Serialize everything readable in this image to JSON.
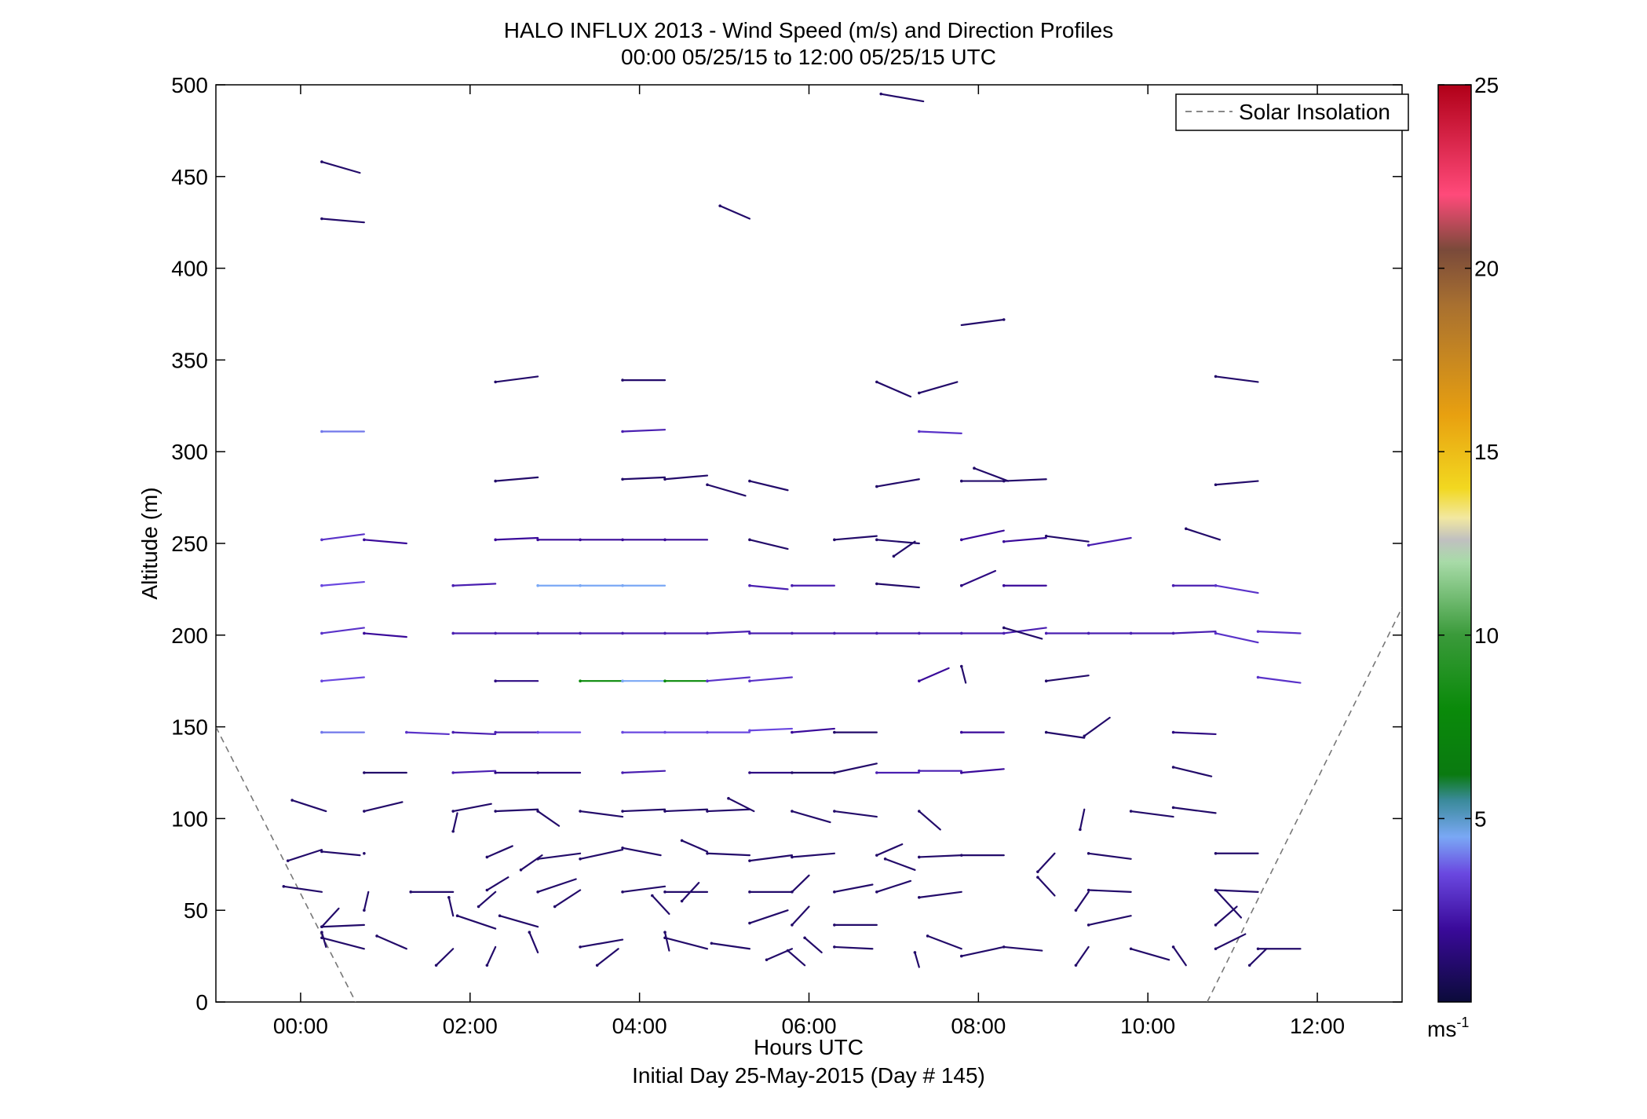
{
  "chart_data": {
    "type": "wind-barb-profile",
    "title_line1": "HALO INFLUX 2013 - Wind Speed (m/s) and Direction Profiles",
    "title_line2": "00:00 05/25/15 to 12:00 05/25/15  UTC",
    "xlabel": "Hours UTC",
    "xlabel_sub": "Initial Day 25-May-2015 (Day # 145)",
    "ylabel": "Altitude (m)",
    "xlim_hours": [
      -1,
      13
    ],
    "ylim": [
      0,
      500
    ],
    "x_ticks": [
      {
        "h": 0,
        "label": "00:00"
      },
      {
        "h": 2,
        "label": "02:00"
      },
      {
        "h": 4,
        "label": "04:00"
      },
      {
        "h": 6,
        "label": "06:00"
      },
      {
        "h": 8,
        "label": "08:00"
      },
      {
        "h": 10,
        "label": "10:00"
      },
      {
        "h": 12,
        "label": "12:00"
      }
    ],
    "y_ticks": [
      {
        "v": 0,
        "label": "0"
      },
      {
        "v": 50,
        "label": "50"
      },
      {
        "v": 100,
        "label": "100"
      },
      {
        "v": 150,
        "label": "150"
      },
      {
        "v": 200,
        "label": "200"
      },
      {
        "v": 250,
        "label": "250"
      },
      {
        "v": 300,
        "label": "300"
      },
      {
        "v": 350,
        "label": "350"
      },
      {
        "v": 400,
        "label": "400"
      },
      {
        "v": 450,
        "label": "450"
      },
      {
        "v": 500,
        "label": "500"
      }
    ],
    "legend": {
      "entry": "Solar Insolation",
      "placement": "top-right",
      "style": "dashed gray"
    },
    "solar_insolation": {
      "left_segment": [
        [
          -1,
          150
        ],
        [
          0.65,
          0
        ]
      ],
      "right_segment": [
        [
          10.7,
          0
        ],
        [
          13,
          215
        ]
      ]
    },
    "colorbar": {
      "min": 0,
      "max": 25,
      "unit_label": "ms",
      "unit_exponent": "-1",
      "tick_labels": [
        {
          "v": 5,
          "label": "5"
        },
        {
          "v": 10,
          "label": "10"
        },
        {
          "v": 15,
          "label": "15"
        },
        {
          "v": 20,
          "label": "20"
        },
        {
          "v": 25,
          "label": "25"
        }
      ],
      "stops": [
        {
          "v": 0,
          "color": "#0b0b3a"
        },
        {
          "v": 2,
          "color": "#3a0a9a"
        },
        {
          "v": 3.5,
          "color": "#6a48e0"
        },
        {
          "v": 4.5,
          "color": "#7aa8f5"
        },
        {
          "v": 5.5,
          "color": "#3a8a9a"
        },
        {
          "v": 6.2,
          "color": "#0a7a10"
        },
        {
          "v": 8,
          "color": "#0a8a0a"
        },
        {
          "v": 10,
          "color": "#3a9a3a"
        },
        {
          "v": 12,
          "color": "#a8dba8"
        },
        {
          "v": 12.6,
          "color": "#c0c0c0"
        },
        {
          "v": 13.2,
          "color": "#f2e8a0"
        },
        {
          "v": 14,
          "color": "#f2d820"
        },
        {
          "v": 16,
          "color": "#e8a010"
        },
        {
          "v": 19,
          "color": "#a87030"
        },
        {
          "v": 20.5,
          "color": "#7a4a3a"
        },
        {
          "v": 22,
          "color": "#ff4a7a"
        },
        {
          "v": 25,
          "color": "#b00018"
        }
      ]
    },
    "vector_note": "each vector: start time (h), altitude (m), dx (h), dz (m), speed (m/s)",
    "vectors": [
      [
        0.25,
        458,
        0.45,
        -6,
        1
      ],
      [
        0.25,
        427,
        0.5,
        -2,
        1
      ],
      [
        0.25,
        311,
        0.5,
        0,
        4
      ],
      [
        0.25,
        252,
        0.5,
        3,
        3
      ],
      [
        0.25,
        227,
        0.5,
        2,
        3.5
      ],
      [
        0.25,
        201,
        0.5,
        3,
        3
      ],
      [
        0.25,
        175,
        0.5,
        2,
        3.5
      ],
      [
        0.25,
        147,
        0.5,
        0,
        4
      ],
      [
        -0.1,
        110,
        0.4,
        -6,
        1
      ],
      [
        0.25,
        82,
        0.45,
        -2,
        1
      ],
      [
        -0.15,
        77,
        0.4,
        6,
        1
      ],
      [
        -0.2,
        63,
        0.45,
        -3,
        1
      ],
      [
        0.25,
        41,
        0.2,
        10,
        1
      ],
      [
        0.25,
        41,
        0.5,
        1,
        1
      ],
      [
        0.25,
        35,
        0.5,
        -6,
        1
      ],
      [
        0.25,
        38,
        0.05,
        -8,
        1
      ],
      [
        0.75,
        252,
        0.5,
        -2,
        2
      ],
      [
        0.75,
        201,
        0.5,
        -2,
        2
      ],
      [
        0.75,
        125,
        0.5,
        0,
        1
      ],
      [
        0.75,
        104,
        0.45,
        5,
        1
      ],
      [
        0.75,
        81,
        0,
        0,
        1
      ],
      [
        0.75,
        50,
        0.05,
        10,
        1
      ],
      [
        0.9,
        36,
        0.35,
        -7,
        1
      ],
      [
        1.25,
        147,
        0.5,
        -1,
        3
      ],
      [
        1.3,
        60,
        0.5,
        0,
        1
      ],
      [
        1.6,
        20,
        0.2,
        9,
        1
      ],
      [
        1.8,
        227,
        0.5,
        1,
        2.5
      ],
      [
        1.8,
        201,
        0.5,
        0,
        2.5
      ],
      [
        1.8,
        147,
        0.5,
        -1,
        2.5
      ],
      [
        1.8,
        125,
        0.5,
        1,
        2.5
      ],
      [
        1.8,
        104,
        0.45,
        4,
        1
      ],
      [
        1.8,
        93,
        0.05,
        10,
        1
      ],
      [
        1.75,
        57,
        0.05,
        -10,
        1
      ],
      [
        1.85,
        47,
        0.45,
        -7,
        1
      ],
      [
        2.1,
        52,
        0.2,
        8,
        1
      ],
      [
        2.2,
        20,
        0.1,
        10,
        1
      ],
      [
        2.3,
        338,
        0.5,
        3,
        1
      ],
      [
        2.3,
        284,
        0.5,
        2,
        1
      ],
      [
        2.3,
        252,
        0.5,
        1,
        2
      ],
      [
        2.3,
        201,
        0.5,
        0,
        2.5
      ],
      [
        2.3,
        175,
        0.5,
        0,
        1.5
      ],
      [
        2.3,
        147,
        0.5,
        0,
        2.5
      ],
      [
        2.3,
        125,
        0.5,
        0,
        1.5
      ],
      [
        2.3,
        104,
        0.5,
        1,
        1
      ],
      [
        2.2,
        79,
        0.3,
        6,
        1
      ],
      [
        2.2,
        61,
        0.25,
        7,
        1
      ],
      [
        2.35,
        47,
        0.45,
        -6,
        1
      ],
      [
        2.7,
        38,
        0.1,
        -11,
        1
      ],
      [
        2.6,
        72,
        0.25,
        8,
        1
      ],
      [
        2.8,
        252,
        0.5,
        0,
        2
      ],
      [
        2.8,
        227,
        0.5,
        0,
        4.5
      ],
      [
        2.8,
        201,
        0.5,
        0,
        2.5
      ],
      [
        2.8,
        147,
        0.5,
        0,
        3.5
      ],
      [
        2.8,
        125,
        0.5,
        0,
        1.5
      ],
      [
        2.8,
        104,
        0.25,
        -8,
        1
      ],
      [
        2.8,
        78,
        0.5,
        3,
        1
      ],
      [
        2.8,
        60,
        0.45,
        7,
        1
      ],
      [
        3.0,
        52,
        0.3,
        9,
        1
      ],
      [
        3.3,
        252,
        0.5,
        0,
        2
      ],
      [
        3.3,
        227,
        0.5,
        0,
        4.5
      ],
      [
        3.3,
        201,
        0.5,
        0,
        2.5
      ],
      [
        3.3,
        175,
        0.5,
        0,
        8
      ],
      [
        3.3,
        104,
        0.5,
        -3,
        1
      ],
      [
        3.3,
        78,
        0.5,
        5,
        1
      ],
      [
        3.3,
        30,
        0.5,
        4,
        1
      ],
      [
        3.5,
        20,
        0.25,
        9,
        1
      ],
      [
        3.8,
        339,
        0.5,
        0,
        1
      ],
      [
        3.8,
        311,
        0.5,
        1,
        2.5
      ],
      [
        3.8,
        285,
        0.5,
        1,
        1
      ],
      [
        3.8,
        252,
        0.5,
        0,
        2
      ],
      [
        3.8,
        227,
        0.5,
        0,
        4.5
      ],
      [
        3.8,
        201,
        0.5,
        0,
        2.5
      ],
      [
        3.8,
        175,
        0.5,
        0,
        4.5
      ],
      [
        3.8,
        147,
        0.5,
        0,
        3.5
      ],
      [
        3.8,
        125,
        0.5,
        1,
        2.5
      ],
      [
        3.8,
        104,
        0.5,
        1,
        1
      ],
      [
        3.8,
        84,
        0.45,
        -4,
        1
      ],
      [
        3.8,
        60,
        0.5,
        3,
        1
      ],
      [
        4.15,
        58,
        0.2,
        -10,
        1
      ],
      [
        4.3,
        38,
        0.05,
        -10,
        1
      ],
      [
        4.3,
        35,
        0.5,
        -6,
        1
      ],
      [
        4.3,
        285,
        0.5,
        2,
        1
      ],
      [
        4.3,
        252,
        0.5,
        0,
        2
      ],
      [
        4.3,
        201,
        0.5,
        0,
        2.5
      ],
      [
        4.3,
        175,
        0.5,
        0,
        8
      ],
      [
        4.3,
        147,
        0.5,
        0,
        3.5
      ],
      [
        4.3,
        104,
        0.5,
        1,
        1
      ],
      [
        4.3,
        60,
        0.5,
        0,
        1
      ],
      [
        4.5,
        55,
        0.2,
        10,
        1
      ],
      [
        4.5,
        88,
        0.3,
        -6,
        1
      ],
      [
        4.8,
        282,
        0.45,
        -6,
        1
      ],
      [
        4.8,
        201,
        0.5,
        1,
        2.5
      ],
      [
        4.8,
        175,
        0.5,
        2,
        3
      ],
      [
        4.8,
        147,
        0.5,
        0,
        3.5
      ],
      [
        4.8,
        104,
        0.5,
        1,
        1
      ],
      [
        4.8,
        81,
        0.5,
        -1,
        1
      ],
      [
        4.85,
        32,
        0.45,
        -3,
        1
      ],
      [
        4.95,
        434,
        0.35,
        -7,
        1
      ],
      [
        5.05,
        111,
        0.3,
        -7,
        1
      ],
      [
        5.3,
        284,
        0.45,
        -5,
        1
      ],
      [
        5.3,
        252,
        0.45,
        -5,
        1
      ],
      [
        5.3,
        227,
        0.45,
        -2,
        2.5
      ],
      [
        5.3,
        201,
        0.5,
        0,
        2.5
      ],
      [
        5.3,
        175,
        0.5,
        2,
        3
      ],
      [
        5.3,
        148,
        0.5,
        1,
        3.5
      ],
      [
        5.3,
        125,
        0.5,
        0,
        1.5
      ],
      [
        5.3,
        77,
        0.5,
        3,
        1
      ],
      [
        5.3,
        60,
        0.5,
        0,
        1
      ],
      [
        5.3,
        43,
        0.45,
        7,
        1
      ],
      [
        5.5,
        23,
        0.3,
        6,
        1
      ],
      [
        5.8,
        227,
        0.5,
        0,
        2.5
      ],
      [
        5.8,
        201,
        0.5,
        0,
        2.5
      ],
      [
        5.8,
        147,
        0.5,
        2,
        2
      ],
      [
        5.8,
        125,
        0.5,
        0,
        1
      ],
      [
        5.8,
        104,
        0.45,
        -6,
        1
      ],
      [
        5.8,
        79,
        0.5,
        2,
        1
      ],
      [
        5.8,
        60,
        0.2,
        9,
        1
      ],
      [
        5.8,
        42,
        0.2,
        10,
        1
      ],
      [
        5.75,
        28,
        0.2,
        -8,
        1
      ],
      [
        5.95,
        35,
        0.2,
        -8,
        1
      ],
      [
        6.3,
        252,
        0.5,
        2,
        1
      ],
      [
        6.3,
        201,
        0.5,
        0,
        2.5
      ],
      [
        6.3,
        147,
        0.5,
        0,
        1
      ],
      [
        6.3,
        125,
        0.5,
        5,
        1
      ],
      [
        6.3,
        104,
        0.5,
        -3,
        1
      ],
      [
        6.3,
        60,
        0.45,
        4,
        1
      ],
      [
        6.3,
        42,
        0.5,
        0,
        1
      ],
      [
        6.3,
        30,
        0.45,
        -1,
        1
      ],
      [
        6.8,
        338,
        0.4,
        -8,
        1
      ],
      [
        6.8,
        281,
        0.5,
        4,
        1
      ],
      [
        6.8,
        252,
        0.5,
        -2,
        1
      ],
      [
        6.8,
        228,
        0.5,
        -2,
        1
      ],
      [
        6.8,
        201,
        0.5,
        0,
        2.5
      ],
      [
        6.8,
        125,
        0.5,
        0,
        2.5
      ],
      [
        6.8,
        80,
        0.3,
        6,
        1
      ],
      [
        6.8,
        60,
        0.4,
        6,
        1
      ],
      [
        6.85,
        495,
        0.5,
        -4,
        1
      ],
      [
        6.9,
        78,
        0.35,
        -6,
        1
      ],
      [
        7.0,
        243,
        0.25,
        8,
        1
      ],
      [
        7.3,
        332,
        0.45,
        6,
        1
      ],
      [
        7.3,
        311,
        0.5,
        -1,
        3
      ],
      [
        7.3,
        201,
        0.5,
        0,
        2.5
      ],
      [
        7.3,
        175,
        0.35,
        7,
        2
      ],
      [
        7.3,
        126,
        0.5,
        0,
        2.5
      ],
      [
        7.3,
        104,
        0.25,
        -10,
        1
      ],
      [
        7.3,
        79,
        0.5,
        1,
        1
      ],
      [
        7.3,
        57,
        0.5,
        3,
        1
      ],
      [
        7.25,
        27,
        0.05,
        -8,
        1
      ],
      [
        7.4,
        36,
        0.4,
        -7,
        1
      ],
      [
        7.8,
        284,
        0.5,
        0,
        1
      ],
      [
        7.8,
        252,
        0.5,
        5,
        2
      ],
      [
        7.8,
        227,
        0.4,
        8,
        1.5
      ],
      [
        7.8,
        201,
        0.5,
        0,
        2.5
      ],
      [
        7.8,
        183,
        0.05,
        -9,
        1
      ],
      [
        7.8,
        147,
        0.5,
        0,
        2
      ],
      [
        7.8,
        125,
        0.5,
        2,
        2
      ],
      [
        7.8,
        80,
        0.5,
        0,
        1
      ],
      [
        7.8,
        25,
        0.5,
        5,
        1
      ],
      [
        7.95,
        291,
        0.4,
        -7,
        1
      ],
      [
        8.3,
        372,
        -0.5,
        -3,
        1
      ],
      [
        8.3,
        284,
        0.5,
        1,
        1
      ],
      [
        8.3,
        251,
        0.5,
        2,
        2
      ],
      [
        8.3,
        227,
        0.5,
        0,
        2
      ],
      [
        8.3,
        201,
        0.5,
        3,
        2.5
      ],
      [
        8.3,
        204,
        0.45,
        -6,
        1
      ],
      [
        8.3,
        30,
        0.45,
        -2,
        1
      ],
      [
        8.8,
        254,
        0.5,
        -3,
        1
      ],
      [
        8.8,
        201,
        0.5,
        0,
        2.5
      ],
      [
        8.8,
        175,
        0.5,
        3,
        1
      ],
      [
        8.8,
        147,
        0.45,
        -3,
        1
      ],
      [
        8.7,
        71,
        0.2,
        10,
        1
      ],
      [
        8.7,
        68,
        0.2,
        -10,
        1
      ],
      [
        9.25,
        145,
        0.3,
        10,
        1
      ],
      [
        9.3,
        201,
        0.5,
        0,
        2.5
      ],
      [
        9.3,
        249,
        0.5,
        4,
        2.5
      ],
      [
        9.3,
        81,
        0.5,
        -3,
        1
      ],
      [
        9.3,
        61,
        0.5,
        -1,
        1
      ],
      [
        9.3,
        42,
        0.5,
        5,
        1
      ],
      [
        9.2,
        94,
        0.05,
        11,
        1
      ],
      [
        9.15,
        50,
        0.15,
        10,
        1
      ],
      [
        9.15,
        20,
        0.15,
        10,
        1
      ],
      [
        9.8,
        201,
        0.5,
        0,
        2.5
      ],
      [
        9.8,
        104,
        0.5,
        -3,
        1
      ],
      [
        9.8,
        29,
        0.45,
        -6,
        1
      ],
      [
        10.3,
        201,
        0.5,
        1,
        2.5
      ],
      [
        10.3,
        227,
        0.5,
        0,
        2.5
      ],
      [
        10.3,
        147,
        0.5,
        -1,
        1.5
      ],
      [
        10.3,
        128,
        0.45,
        -5,
        1
      ],
      [
        10.3,
        106,
        0.5,
        -3,
        1
      ],
      [
        10.3,
        30,
        0.15,
        -10,
        1
      ],
      [
        10.45,
        258,
        0.4,
        -6,
        1
      ],
      [
        10.8,
        341,
        0.5,
        -3,
        1
      ],
      [
        10.8,
        282,
        0.5,
        2,
        1
      ],
      [
        10.8,
        227,
        0.5,
        -4,
        3
      ],
      [
        10.8,
        201,
        0.5,
        -5,
        3
      ],
      [
        10.8,
        81,
        0.5,
        0,
        1
      ],
      [
        10.8,
        61,
        0.5,
        -1,
        1
      ],
      [
        10.8,
        61,
        0.3,
        -15,
        1
      ],
      [
        10.8,
        42,
        0.25,
        10,
        1
      ],
      [
        10.8,
        29,
        0.35,
        8,
        1
      ],
      [
        11.2,
        20,
        0.2,
        9,
        1
      ],
      [
        11.3,
        202,
        0.5,
        -1,
        3
      ],
      [
        11.3,
        177,
        0.5,
        -3,
        3
      ],
      [
        11.3,
        29,
        0.5,
        0,
        1
      ]
    ]
  }
}
